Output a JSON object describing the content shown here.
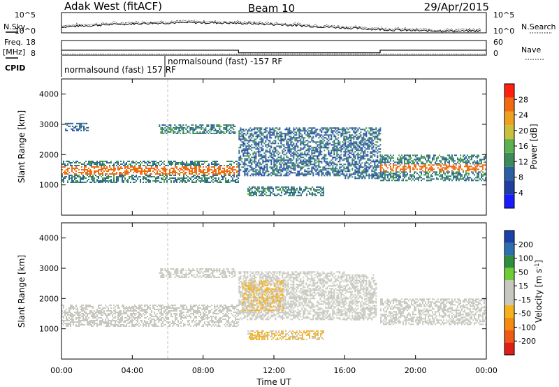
{
  "header": {
    "station": "Adak West (fitACF)",
    "beam": "Beam 10",
    "date": "29/Apr/2015"
  },
  "noise_panel": {
    "left_label": "N.Sky",
    "right_label": "N.Search",
    "left_ticks": [
      "10^5",
      "10^0"
    ],
    "right_ticks": [
      "10^5",
      "10^0"
    ]
  },
  "freq_panel": {
    "left_label_1": "Freq.",
    "left_label_2": "[MHz]",
    "left_ticks": [
      "18",
      "8"
    ],
    "right_label": "Nave",
    "right_ticks": [
      "60",
      "0"
    ],
    "freq_segments_mhz": [
      {
        "start_h": 0,
        "end_h": 10,
        "value": 11.4
      },
      {
        "start_h": 10,
        "end_h": 18,
        "value": 9.6
      },
      {
        "start_h": 18,
        "end_h": 24,
        "value": 11.4
      }
    ],
    "nave_level": 5
  },
  "cpid": {
    "label": "CPID",
    "entries": [
      {
        "text": "normalsound (fast) 157 RF",
        "start_h": 0
      },
      {
        "text": "normalsound (fast) -157 RF",
        "start_h": 6.1
      }
    ]
  },
  "colors": {
    "power_scale": [
      "#1a1aff",
      "#1f3fa0",
      "#2b5fa0",
      "#3c8b5a",
      "#5db050",
      "#c8c03c",
      "#f0a020",
      "#f06a10",
      "#ff2010"
    ],
    "velocity_scale": [
      "#dd1f17",
      "#ee5a14",
      "#f58c10",
      "#f5b21c",
      "#c8c8c0",
      "#c8c8c0",
      "#6fcc37",
      "#2f8d3f",
      "#2b6fb0",
      "#1c3fa8"
    ],
    "ground_scatter": "#c8c8c0"
  },
  "chart_data": [
    {
      "type": "heatmap",
      "title": "",
      "xlabel": "Time UT",
      "ylabel": "Slant Range [km]",
      "xlim": [
        0,
        24
      ],
      "ylim": [
        0,
        4500
      ],
      "x_ticks": [
        "00:00",
        "04:00",
        "08:00",
        "12:00",
        "16:00",
        "20:00",
        "00:00"
      ],
      "y_ticks": [
        "1000",
        "2000",
        "3000",
        "4000"
      ],
      "colorbar": {
        "label": "Power [dB]",
        "ticks": [
          "4",
          "8",
          "12",
          "16",
          "20",
          "24",
          "28"
        ],
        "range": [
          0,
          30
        ]
      },
      "bands": [
        {
          "start_h": 0,
          "end_h": 10,
          "range_km": [
            1100,
            1800
          ],
          "core_km": [
            1350,
            1650
          ],
          "power_db": 26
        },
        {
          "start_h": 10,
          "end_h": 16,
          "range_km": [
            1300,
            2900
          ],
          "power_db": 8
        },
        {
          "start_h": 16,
          "end_h": 18,
          "range_km": [
            1200,
            2900
          ],
          "power_db": 8
        },
        {
          "start_h": 18,
          "end_h": 24,
          "range_km": [
            1150,
            2000
          ],
          "core_km": [
            1450,
            1700
          ],
          "power_db": 20
        },
        {
          "start_h": 0.2,
          "end_h": 1.5,
          "range_km": [
            2800,
            3050
          ],
          "power_db": 8
        },
        {
          "start_h": 5.5,
          "end_h": 9.8,
          "range_km": [
            2700,
            3000
          ],
          "power_db": 10
        },
        {
          "start_h": 10.5,
          "end_h": 14.8,
          "range_km": [
            650,
            950
          ],
          "power_db": 10
        }
      ]
    },
    {
      "type": "heatmap",
      "title": "",
      "xlabel": "Time UT",
      "ylabel": "Slant Range [km]",
      "xlim": [
        0,
        24
      ],
      "ylim": [
        0,
        4500
      ],
      "x_ticks": [
        "00:00",
        "04:00",
        "08:00",
        "12:00",
        "16:00",
        "20:00",
        "00:00"
      ],
      "y_ticks": [
        "1000",
        "2000",
        "3000",
        "4000"
      ],
      "colorbar": {
        "label": "Velocity [m s^-1]",
        "ticks": [
          "200",
          "100",
          "50",
          "15",
          "-15",
          "-50",
          "-100",
          "-200"
        ],
        "range": [
          -250,
          250
        ]
      },
      "bands": [
        {
          "start_h": 0,
          "end_h": 10,
          "range_km": [
            1100,
            1800
          ],
          "velocity_ms": 0,
          "ground_scatter": true
        },
        {
          "start_h": 10,
          "end_h": 16,
          "range_km": [
            1300,
            2900
          ],
          "velocity_ms": 0,
          "ground_scatter": true
        },
        {
          "start_h": 18,
          "end_h": 24,
          "range_km": [
            1150,
            2000
          ],
          "velocity_ms": 0,
          "ground_scatter": true
        },
        {
          "start_h": 5.5,
          "end_h": 9.8,
          "range_km": [
            2700,
            3000
          ],
          "velocity_ms": 0,
          "ground_scatter": true
        },
        {
          "start_h": 10.5,
          "end_h": 14.8,
          "range_km": [
            650,
            950
          ],
          "velocity_ms": -60
        },
        {
          "start_h": 16,
          "end_h": 17.8,
          "range_km": [
            1300,
            2800
          ],
          "velocity_ms": 40
        },
        {
          "start_h": 10.2,
          "end_h": 12.5,
          "range_km": [
            1600,
            2600
          ],
          "velocity_ms": -60
        }
      ]
    }
  ]
}
